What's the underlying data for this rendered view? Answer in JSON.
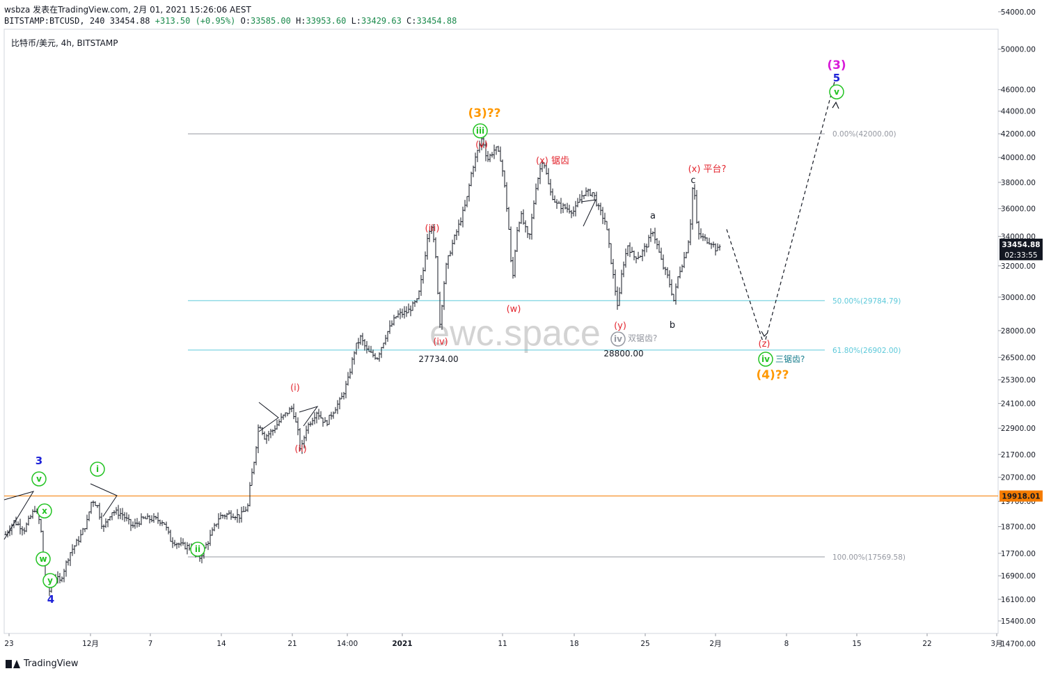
{
  "header": {
    "line1": "wsbza 发表在TradingView.com, 2月 01, 2021 15:26:06 AEST",
    "symbol": "BITSTAMP:BTCUSD, 240",
    "last": "33454.88",
    "change": "+313.50 (+0.95%)",
    "o_label": "O:",
    "o": "33585.00",
    "h_label": "H:",
    "h": "33953.60",
    "l_label": "L:",
    "l": "33429.63",
    "c_label": "C:",
    "c": "33454.88"
  },
  "symbol_label": "比特币/美元, 4h, BITSTAMP",
  "watermark": "ewc.space",
  "footer": {
    "brand": "TradingView"
  },
  "chart_data": {
    "type": "candlestick",
    "symbol": "BITSTAMP:BTCUSD",
    "interval": "4h",
    "y_scale": "log",
    "ylim": [
      14000,
      56000
    ],
    "y_ticks": [
      54000,
      50000,
      46000,
      44000,
      42000,
      40000,
      38000,
      36000,
      34000,
      32000,
      30000,
      28000,
      26500,
      25300,
      24100,
      22900,
      21700,
      20700,
      19700,
      18700,
      17700,
      16900,
      16100,
      15400,
      14700
    ],
    "y_tick_labels": [
      "54000.00",
      "50000.00",
      "46000.00",
      "44000.00",
      "42000.00",
      "40000.00",
      "38000.00",
      "36000.00",
      "34000.00",
      "32000.00",
      "30000.00",
      "28000.00",
      "26500.00",
      "25300.00",
      "24100.00",
      "22900.00",
      "21700.00",
      "20700.00",
      "19700.00",
      "18700.00",
      "17700.00",
      "16900.00",
      "16100.00",
      "15400.00",
      "14700.00"
    ],
    "x_ticks": [
      "23",
      "12月",
      "7",
      "14",
      "21",
      "14:00",
      "2021",
      "11",
      "18",
      "25",
      "2月",
      "8",
      "15",
      "22",
      "3月"
    ],
    "price_label": "33454.88",
    "countdown_label": "02:33:55",
    "key_price": 19918.01,
    "key_price_label": "19918.01",
    "fib_levels": [
      {
        "label": "0.00%(42000.00)",
        "price": 42000,
        "color": "#9598a1"
      },
      {
        "label": "50.00%(29784.79)",
        "price": 29784.79,
        "color": "#5cc9da"
      },
      {
        "label": "61.80%(26902.00)",
        "price": 26902,
        "color": "#5cc9da"
      },
      {
        "label": "100.00%(17569.58)",
        "price": 17569.58,
        "color": "#9598a1"
      }
    ],
    "price_notes": [
      "27734.00",
      "28800.00"
    ],
    "wave_labels": {
      "blue_3": "3",
      "blue_4": "4",
      "blue_5": "5",
      "circ_v_left": "v",
      "circ_x": "x",
      "circ_w": "w",
      "circ_y": "y",
      "circ_i": "i",
      "circ_ii": "ii",
      "circ_iii": "iii",
      "circ_iv": "iv",
      "circ_iv_proj": "iv",
      "circ_v_right": "v",
      "r_i": "(i)",
      "r_ii": "(ii)",
      "r_iii": "(iii)",
      "r_iv": "(iv)",
      "r_v": "(v)",
      "r_w": "(w)",
      "r_x1": "(x) 锯齿",
      "r_y": "(y)",
      "r_x2": "(x) 平台?",
      "r_z": "(z)",
      "o_3": "(3)??",
      "o_4": "(4)??",
      "m_3": "(3)",
      "k_a": "a",
      "k_b": "b",
      "k_c": "c",
      "g_double": "双锯齿?",
      "t_triple": "三锯齿?"
    },
    "colors": {
      "candle": "#131722",
      "key_line": "#f57c00",
      "price_tag_bg": "#131722",
      "wave_blue": "#1e22d8",
      "wave_green": "#22c322",
      "wave_red": "#e3262f",
      "wave_orange": "#ff9800",
      "wave_magenta": "#d81bd8",
      "fib_cyan": "#5cc9da",
      "fib_gray": "#9598a1"
    }
  }
}
